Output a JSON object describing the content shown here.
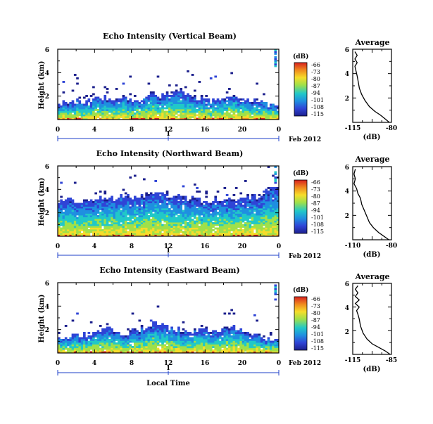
{
  "colors": {
    "accent_blue": "#1d3fc8",
    "scale": [
      "#1b1f8c",
      "#2f44d6",
      "#1f8fe0",
      "#21c8c8",
      "#9fe04a",
      "#f6dd2a",
      "#f08a1e",
      "#d8201e"
    ]
  },
  "shared": {
    "x_ticks": [
      "0",
      "4",
      "8",
      "12",
      "16",
      "20",
      "0"
    ],
    "day_label": "1",
    "date_label": "Feb 2012",
    "xlabel": "Local Time",
    "colorbar_unit": "(dB)",
    "profile_title": "Average",
    "profile_xlabel": "(dB)"
  },
  "chart_data": [
    {
      "type": "heatmap",
      "title": "Echo Intensity (Vertical Beam)",
      "ylabel": "Height (km)",
      "y_ticks": [
        "2",
        "4",
        "6"
      ],
      "ylim": [
        0,
        6
      ],
      "xlim_hours": [
        0,
        24
      ],
      "colorbar_ticks": [
        "-66",
        "-73",
        "-80",
        "-87",
        "-94",
        "-101",
        "-108",
        "-115"
      ],
      "echo_top_km": [
        1.4,
        1.5,
        1.6,
        1.5,
        1.7,
        1.9,
        1.6,
        2.0,
        1.8,
        1.6,
        2.2,
        2.0,
        2.3,
        2.6,
        2.1,
        1.9,
        1.7,
        1.6,
        1.8,
        2.1,
        1.9,
        1.6,
        1.5,
        1.4
      ],
      "profile": {
        "xlim": [
          -115,
          -80
        ],
        "x_ticks": [
          "-115",
          "-80"
        ],
        "y_ticks": [
          "2",
          "4",
          "6"
        ],
        "points": [
          [
            -82,
            0.0
          ],
          [
            -86,
            0.3
          ],
          [
            -90,
            0.6
          ],
          [
            -95,
            0.9
          ],
          [
            -100,
            1.3
          ],
          [
            -104,
            1.8
          ],
          [
            -107,
            2.3
          ],
          [
            -109,
            2.8
          ],
          [
            -110,
            3.3
          ],
          [
            -111,
            3.8
          ],
          [
            -112,
            4.2
          ],
          [
            -113,
            4.6
          ],
          [
            -111,
            4.9
          ],
          [
            -113,
            5.2
          ],
          [
            -111,
            5.5
          ],
          [
            -113,
            5.8
          ]
        ]
      }
    },
    {
      "type": "heatmap",
      "title": "Echo Intensity (Northward Beam)",
      "ylabel": "Height (km)",
      "y_ticks": [
        "2",
        "4",
        "6"
      ],
      "ylim": [
        0,
        6
      ],
      "xlim_hours": [
        0,
        24
      ],
      "colorbar_ticks": [
        "-66",
        "-73",
        "-80",
        "-87",
        "-94",
        "-101",
        "-108",
        "-115"
      ],
      "echo_top_km": [
        3.0,
        3.1,
        3.0,
        3.2,
        3.1,
        3.3,
        3.2,
        3.4,
        3.3,
        3.5,
        3.4,
        3.6,
        3.5,
        3.3,
        3.2,
        3.2,
        3.0,
        3.1,
        3.2,
        3.1,
        3.3,
        3.4,
        3.6,
        4.0
      ],
      "profile": {
        "xlim": [
          -110,
          -80
        ],
        "x_ticks": [
          "-110",
          "-80"
        ],
        "y_ticks": [
          "2",
          "4",
          "6"
        ],
        "points": [
          [
            -82,
            0.0
          ],
          [
            -86,
            0.3
          ],
          [
            -90,
            0.6
          ],
          [
            -94,
            1.0
          ],
          [
            -97,
            1.4
          ],
          [
            -99,
            1.9
          ],
          [
            -101,
            2.4
          ],
          [
            -103,
            2.9
          ],
          [
            -104,
            3.4
          ],
          [
            -106,
            3.8
          ],
          [
            -107,
            4.2
          ],
          [
            -109,
            4.6
          ],
          [
            -108,
            5.0
          ],
          [
            -109,
            5.4
          ],
          [
            -108,
            5.8
          ]
        ]
      }
    },
    {
      "type": "heatmap",
      "title": "Echo Intensity (Eastward Beam)",
      "ylabel": "Height (km)",
      "y_ticks": [
        "2",
        "4",
        "6"
      ],
      "ylim": [
        0,
        6
      ],
      "xlim_hours": [
        0,
        24
      ],
      "colorbar_ticks": [
        "-66",
        "-73",
        "-80",
        "-87",
        "-94",
        "-101",
        "-108",
        "-115"
      ],
      "echo_top_km": [
        1.2,
        1.3,
        1.5,
        1.6,
        1.8,
        2.0,
        1.9,
        1.6,
        1.8,
        2.1,
        2.4,
        2.6,
        2.2,
        2.0,
        1.8,
        1.9,
        2.0,
        1.8,
        2.1,
        2.3,
        1.8,
        1.5,
        1.3,
        1.2
      ],
      "profile": {
        "xlim": [
          -115,
          -85
        ],
        "x_ticks": [
          "-115",
          "-85"
        ],
        "y_ticks": [
          "2",
          "4",
          "6"
        ],
        "points": [
          [
            -86,
            0.0
          ],
          [
            -90,
            0.3
          ],
          [
            -95,
            0.6
          ],
          [
            -100,
            0.9
          ],
          [
            -104,
            1.3
          ],
          [
            -107,
            1.8
          ],
          [
            -109,
            2.4
          ],
          [
            -110,
            3.0
          ],
          [
            -111,
            3.4
          ],
          [
            -112,
            3.7
          ],
          [
            -110,
            4.0
          ],
          [
            -113,
            4.3
          ],
          [
            -110,
            4.6
          ],
          [
            -113,
            4.9
          ],
          [
            -111,
            5.2
          ],
          [
            -113,
            5.5
          ],
          [
            -111,
            5.8
          ]
        ]
      }
    }
  ]
}
